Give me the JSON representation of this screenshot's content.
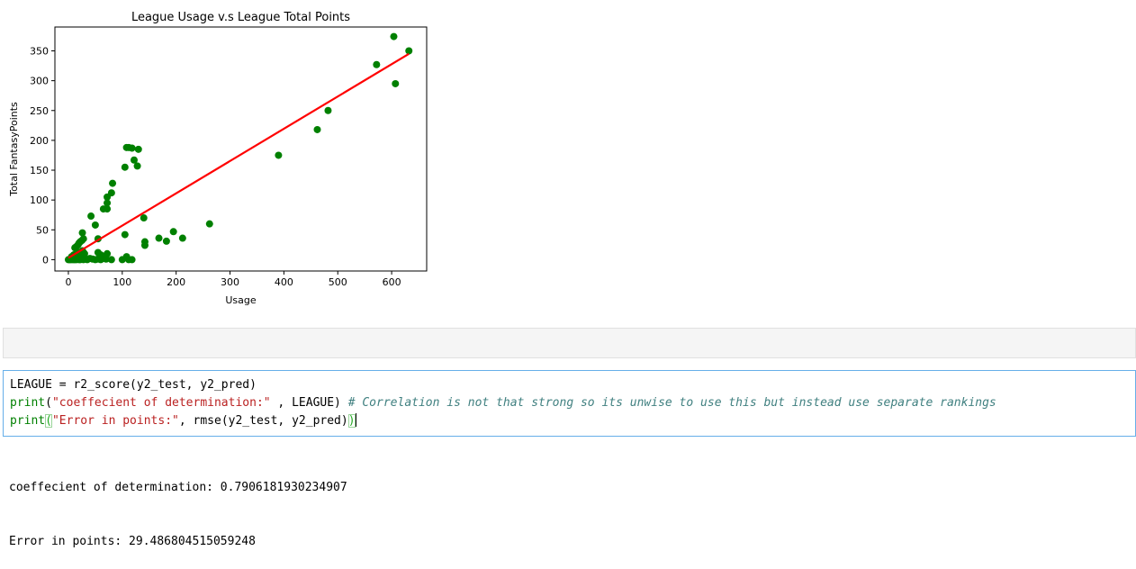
{
  "chart_data": {
    "type": "scatter",
    "title": "League Usage v.s League Total Points",
    "xlabel": "Usage",
    "ylabel": "Total FantasyPoints",
    "xlim": [
      -25,
      665
    ],
    "ylim": [
      -19,
      390
    ],
    "xticks": [
      0,
      100,
      200,
      300,
      400,
      500,
      600
    ],
    "yticks": [
      0,
      50,
      100,
      150,
      200,
      250,
      300,
      350
    ],
    "grid": false,
    "point_color": "#008000",
    "line_color": "#ff0000",
    "points": [
      [
        0,
        0
      ],
      [
        2,
        0
      ],
      [
        4,
        0
      ],
      [
        5,
        1
      ],
      [
        7,
        0
      ],
      [
        8,
        2
      ],
      [
        10,
        0
      ],
      [
        12,
        0
      ],
      [
        14,
        1
      ],
      [
        15,
        0
      ],
      [
        18,
        1
      ],
      [
        20,
        0
      ],
      [
        22,
        0
      ],
      [
        25,
        1
      ],
      [
        28,
        0
      ],
      [
        6,
        5
      ],
      [
        10,
        8
      ],
      [
        12,
        3
      ],
      [
        14,
        10
      ],
      [
        16,
        6
      ],
      [
        18,
        12
      ],
      [
        20,
        4
      ],
      [
        22,
        9
      ],
      [
        24,
        7
      ],
      [
        26,
        15
      ],
      [
        28,
        12
      ],
      [
        30,
        10
      ],
      [
        12,
        20
      ],
      [
        15,
        22
      ],
      [
        18,
        25
      ],
      [
        20,
        28
      ],
      [
        22,
        30
      ],
      [
        25,
        32
      ],
      [
        28,
        35
      ],
      [
        26,
        45
      ],
      [
        35,
        0
      ],
      [
        40,
        2
      ],
      [
        45,
        1
      ],
      [
        50,
        0
      ],
      [
        55,
        1
      ],
      [
        60,
        0
      ],
      [
        65,
        2
      ],
      [
        70,
        1
      ],
      [
        55,
        12
      ],
      [
        60,
        8
      ],
      [
        65,
        5
      ],
      [
        72,
        10
      ],
      [
        80,
        0
      ],
      [
        42,
        73
      ],
      [
        50,
        58
      ],
      [
        55,
        35
      ],
      [
        65,
        85
      ],
      [
        72,
        85
      ],
      [
        72,
        95
      ],
      [
        72,
        105
      ],
      [
        80,
        112
      ],
      [
        82,
        128
      ],
      [
        105,
        155
      ],
      [
        108,
        188
      ],
      [
        112,
        188
      ],
      [
        118,
        187
      ],
      [
        122,
        167
      ],
      [
        128,
        157
      ],
      [
        130,
        185
      ],
      [
        105,
        42
      ],
      [
        100,
        0
      ],
      [
        108,
        5
      ],
      [
        112,
        0
      ],
      [
        118,
        0
      ],
      [
        140,
        70
      ],
      [
        142,
        30
      ],
      [
        142,
        24
      ],
      [
        168,
        36
      ],
      [
        182,
        31
      ],
      [
        195,
        47
      ],
      [
        212,
        36
      ],
      [
        262,
        60
      ],
      [
        390,
        175
      ],
      [
        462,
        218
      ],
      [
        482,
        250
      ],
      [
        572,
        327
      ],
      [
        604,
        374
      ],
      [
        607,
        295
      ],
      [
        632,
        350
      ]
    ],
    "fit_line": {
      "x": [
        0,
        632
      ],
      "y": [
        3,
        345
      ]
    }
  },
  "cells": {
    "code_lines": [
      [
        {
          "t": "LEAGUE = r2_score(y2_test, y2_pred)",
          "c": ""
        }
      ],
      [
        {
          "t": "print",
          "c": "kw-builtin"
        },
        {
          "t": "(",
          "c": ""
        },
        {
          "t": "\"coeffecient of determination:\"",
          "c": "str"
        },
        {
          "t": " , LEAGUE) ",
          "c": ""
        },
        {
          "t": "# Correlation is not that strong so its unwise to use this but instead use separate rankings",
          "c": "comment"
        }
      ],
      [
        {
          "t": "print",
          "c": "kw-builtin"
        },
        {
          "t": "(",
          "c": "paren-hl"
        },
        {
          "t": "\"Error in points:\"",
          "c": "str"
        },
        {
          "t": ", rmse(y2_test, y2_pred)",
          "c": ""
        },
        {
          "t": ")",
          "c": "paren-hl"
        }
      ]
    ],
    "output": {
      "line1": "coeffecient of determination: 0.7906181930234907",
      "line2": "Error in points: 29.486804515059248"
    }
  }
}
